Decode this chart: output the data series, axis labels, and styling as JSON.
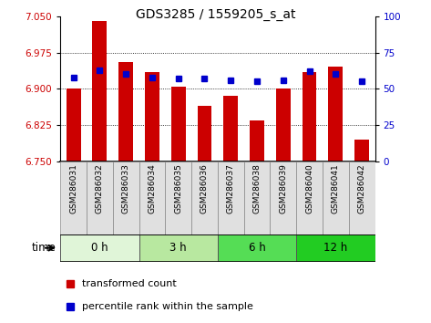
{
  "title": "GDS3285 / 1559205_s_at",
  "samples": [
    "GSM286031",
    "GSM286032",
    "GSM286033",
    "GSM286034",
    "GSM286035",
    "GSM286036",
    "GSM286037",
    "GSM286038",
    "GSM286039",
    "GSM286040",
    "GSM286041",
    "GSM286042"
  ],
  "bar_values": [
    6.9,
    7.04,
    6.955,
    6.935,
    6.905,
    6.865,
    6.885,
    6.835,
    6.9,
    6.935,
    6.945,
    6.795
  ],
  "percentile_values": [
    58,
    63,
    60,
    58,
    57,
    57,
    56,
    55,
    56,
    62,
    60,
    55
  ],
  "bar_bottom": 6.75,
  "ylim": [
    6.75,
    7.05
  ],
  "right_ylim": [
    0,
    100
  ],
  "yticks": [
    6.75,
    6.825,
    6.9,
    6.975,
    7.05
  ],
  "right_yticks": [
    0,
    25,
    50,
    75,
    100
  ],
  "bar_color": "#cc0000",
  "blue_color": "#0000cc",
  "group_colors": [
    "#e0f5d8",
    "#b8e8a0",
    "#55dd55",
    "#22cc22"
  ],
  "group_defs": [
    {
      "label": "0 h",
      "start": 0,
      "end": 2
    },
    {
      "label": "3 h",
      "start": 3,
      "end": 5
    },
    {
      "label": "6 h",
      "start": 6,
      "end": 8
    },
    {
      "label": "12 h",
      "start": 9,
      "end": 11
    }
  ],
  "legend_bar_label": "transformed count",
  "legend_blue_label": "percentile rank within the sample",
  "tick_label_color_left": "#cc0000",
  "tick_label_color_right": "#0000cc",
  "sample_cell_color": "#e0e0e0"
}
